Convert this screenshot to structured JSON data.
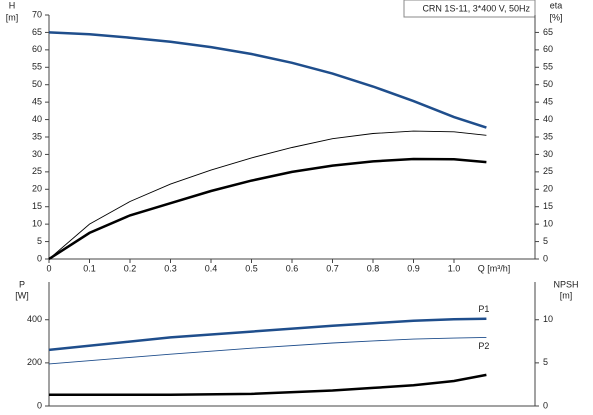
{
  "chart_data": [
    {
      "type": "line",
      "annotation": "CRN 1S-11, 3*400 V, 50Hz",
      "ylabel": [
        "H",
        "[m]"
      ],
      "y2label": [
        "eta",
        "[%]"
      ],
      "xlabel": "Q [m³/h]",
      "xlim": [
        0,
        1.2
      ],
      "xticks": [
        0,
        0.1,
        0.2,
        0.3,
        0.4,
        0.5,
        0.6,
        0.7,
        0.8,
        0.9,
        {
          "value": 1,
          "label": "1.0"
        }
      ],
      "ylim": [
        0,
        70
      ],
      "yticks": [
        0,
        5,
        10,
        15,
        20,
        25,
        30,
        35,
        40,
        45,
        50,
        55,
        60,
        65,
        70
      ],
      "y2lim": [
        0,
        70
      ],
      "y2ticks": [
        0,
        5,
        10,
        15,
        20,
        25,
        30,
        35,
        40,
        45,
        50,
        55,
        60,
        65
      ],
      "x": [
        0,
        0.1,
        0.2,
        0.3,
        0.4,
        0.5,
        0.6,
        0.7,
        0.8,
        0.9,
        1.0,
        1.08
      ],
      "series": [
        {
          "color": "#1f4e8c",
          "style": "thick",
          "values": [
            65,
            64.5,
            63.5,
            62.3,
            60.8,
            58.8,
            56.3,
            53.2,
            49.5,
            45.3,
            40.7,
            37.7
          ]
        },
        {
          "color": "#000000",
          "style": "thin",
          "axis": "y2",
          "values": [
            0,
            10,
            16.5,
            21.5,
            25.5,
            29,
            32,
            34.5,
            36,
            36.7,
            36.5,
            35.5
          ]
        },
        {
          "color": "#000000",
          "style": "thick",
          "axis": "y2",
          "values": [
            0,
            7.5,
            12.5,
            16,
            19.5,
            22.5,
            25,
            26.8,
            28,
            28.7,
            28.6,
            27.8
          ]
        }
      ]
    },
    {
      "type": "line",
      "ylabel": [
        "P",
        "[W]"
      ],
      "y2label": [
        "NPSH",
        "[m]"
      ],
      "xlim": [
        0,
        1.2
      ],
      "ylim": [
        0,
        575
      ],
      "yticks": [
        0,
        200,
        400
      ],
      "y2lim": [
        0,
        14.375
      ],
      "y2ticks": [
        0,
        5,
        10
      ],
      "x": [
        0,
        0.3,
        0.5,
        0.7,
        0.8,
        0.9,
        1.0,
        1.08
      ],
      "series": [
        {
          "name": "P1",
          "color": "#1f4e8c",
          "style": "thick",
          "values": [
            260,
            318,
            345,
            372,
            384,
            395,
            402,
            405
          ]
        },
        {
          "name": "P2",
          "color": "#1f4e8c",
          "style": "thin",
          "values": [
            195,
            240,
            268,
            292,
            302,
            310,
            315,
            318
          ]
        },
        {
          "color": "#000000",
          "style": "thick",
          "axis": "y2",
          "values": [
            1.3,
            1.3,
            1.4,
            1.8,
            2.1,
            2.4,
            2.9,
            3.6
          ]
        }
      ]
    }
  ]
}
